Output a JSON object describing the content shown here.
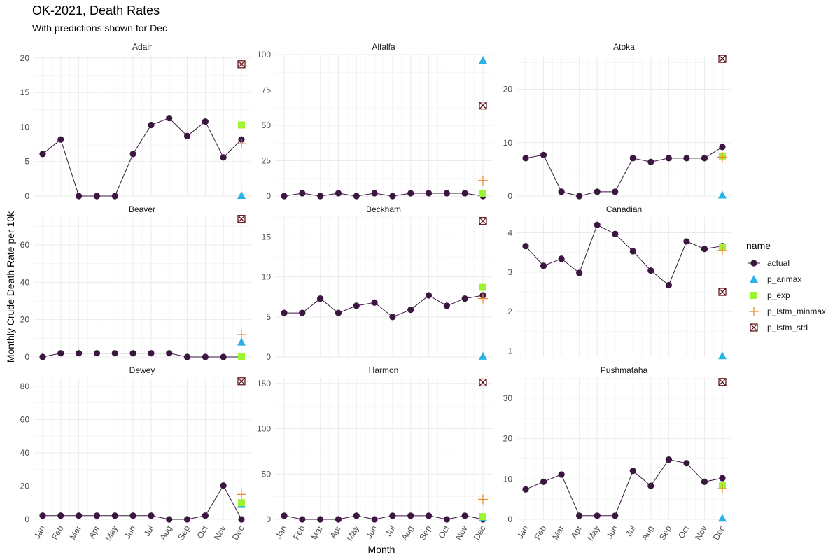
{
  "title": "OK-2021, Death Rates",
  "subtitle": "With predictions shown for Dec",
  "chart_data": {
    "type": "line",
    "xlabel": "Month",
    "ylabel": "Monthly Crude Death Rate per 10k",
    "months": [
      "Jan",
      "Feb",
      "Mar",
      "Apr",
      "May",
      "Jun",
      "Jul",
      "Aug",
      "Sep",
      "Oct",
      "Nov",
      "Dec"
    ],
    "legend": {
      "title": "name",
      "entries": [
        "actual",
        "p_arimax",
        "p_exp",
        "p_lstm_minmax",
        "p_lstm_std"
      ],
      "placement": "right"
    },
    "colors": {
      "actual": "#3b1640",
      "p_arimax": "#29b3e4",
      "p_exp": "#9df531",
      "p_lstm_minmax": "#f08c2c",
      "p_lstm_std": "#5c0d12"
    },
    "panels": [
      {
        "name": "Adair",
        "ylim": [
          0,
          20.5
        ],
        "yticks": [
          0,
          5,
          10,
          15,
          20
        ],
        "actual": [
          6.1,
          8.2,
          0,
          0,
          0,
          6.1,
          10.3,
          11.3,
          8.7,
          10.8,
          5.6,
          8.2
        ],
        "pred": {
          "p_arimax": 0.1,
          "p_exp": 10.3,
          "p_lstm_minmax": 7.6,
          "p_lstm_std": 19.1
        }
      },
      {
        "name": "Alfalfa",
        "ylim": [
          0,
          100
        ],
        "yticks": [
          0,
          25,
          50,
          75,
          100
        ],
        "actual": [
          0,
          2,
          0,
          2,
          0,
          2,
          0,
          2,
          2,
          2,
          2,
          0
        ],
        "pred": {
          "p_arimax": 96,
          "p_exp": 2,
          "p_lstm_minmax": 11,
          "p_lstm_std": 64
        }
      },
      {
        "name": "Atoka",
        "ylim": [
          0,
          26.5
        ],
        "yticks": [
          0,
          10,
          20
        ],
        "actual": [
          7.1,
          7.7,
          0.8,
          0,
          0.8,
          0.8,
          7.1,
          6.4,
          7.1,
          7.1,
          7.1,
          9.2
        ],
        "pred": {
          "p_arimax": 0.2,
          "p_exp": 7.5,
          "p_lstm_minmax": 7.3,
          "p_lstm_std": 25.7
        }
      },
      {
        "name": "Beaver",
        "ylim": [
          0,
          75
        ],
        "yticks": [
          0,
          20,
          40,
          60
        ],
        "actual": [
          0,
          2,
          2,
          2,
          2,
          2,
          2,
          2,
          0,
          0,
          0,
          0
        ],
        "pred": {
          "p_arimax": 8,
          "p_exp": 0,
          "p_lstm_minmax": 12,
          "p_lstm_std": 74
        }
      },
      {
        "name": "Beckham",
        "ylim": [
          0,
          17.5
        ],
        "yticks": [
          0,
          5,
          10,
          15
        ],
        "actual": [
          5.5,
          5.5,
          7.3,
          5.5,
          6.4,
          6.8,
          5,
          5.9,
          7.7,
          6.4,
          7.3,
          7.7
        ],
        "pred": {
          "p_arimax": 0.1,
          "p_exp": 8.7,
          "p_lstm_minmax": 7.3,
          "p_lstm_std": 17
        }
      },
      {
        "name": "Canadian",
        "ylim": [
          0.85,
          4.4
        ],
        "yticks": [
          1,
          2,
          3,
          4
        ],
        "actual": [
          3.66,
          3.16,
          3.34,
          2.98,
          4.2,
          3.97,
          3.53,
          3.04,
          2.67,
          3.78,
          3.59,
          3.66
        ],
        "pred": {
          "p_arimax": 0.88,
          "p_exp": 3.62,
          "p_lstm_minmax": 3.55,
          "p_lstm_std": 2.5
        }
      },
      {
        "name": "Dewey",
        "ylim": [
          0,
          85
        ],
        "yticks": [
          0,
          20,
          40,
          60,
          80
        ],
        "actual": [
          2.2,
          2.2,
          2.2,
          2.2,
          2.2,
          2.2,
          2.2,
          0,
          0,
          2.2,
          20.3,
          0
        ],
        "pred": {
          "p_arimax": 9,
          "p_exp": 10,
          "p_lstm_minmax": 15,
          "p_lstm_std": 83
        }
      },
      {
        "name": "Harmon",
        "ylim": [
          0,
          156
        ],
        "yticks": [
          0,
          50,
          100,
          150
        ],
        "actual": [
          4,
          0,
          0,
          0,
          4,
          0,
          4,
          4,
          4,
          0,
          4,
          0
        ],
        "pred": {
          "p_arimax": 2,
          "p_exp": 3,
          "p_lstm_minmax": 22,
          "p_lstm_std": 151
        }
      },
      {
        "name": "Pushmataha",
        "ylim": [
          0,
          35
        ],
        "yticks": [
          0,
          10,
          20,
          30
        ],
        "actual": [
          7.4,
          9.3,
          11.1,
          0.9,
          0.9,
          0.9,
          12,
          8.3,
          14.8,
          13.9,
          9.3,
          10.2
        ],
        "pred": {
          "p_arimax": 0.3,
          "p_exp": 8.3,
          "p_lstm_minmax": 7.6,
          "p_lstm_std": 34
        }
      }
    ]
  }
}
